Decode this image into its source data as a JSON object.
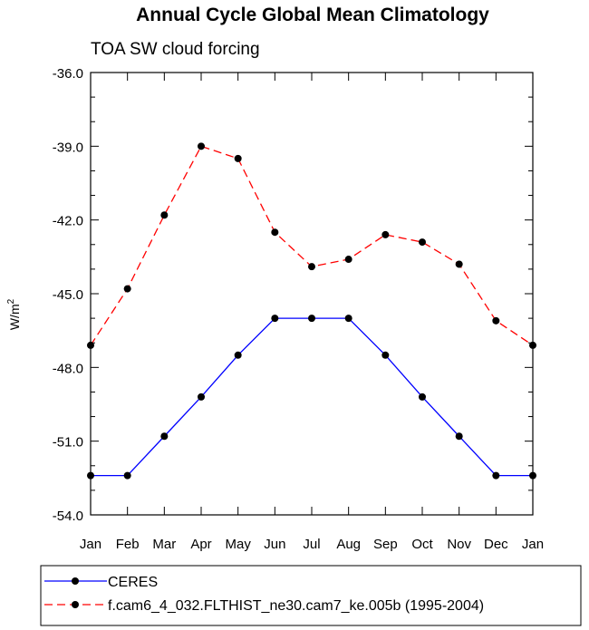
{
  "chart_data": {
    "type": "line",
    "title": "Annual Cycle Global Mean Climatology",
    "subtitle": "TOA SW cloud forcing",
    "xlabel": "",
    "ylabel": "W/m",
    "ylabel_superscript": "2",
    "categories": [
      "Jan",
      "Feb",
      "Mar",
      "Apr",
      "May",
      "Jun",
      "Jul",
      "Aug",
      "Sep",
      "Oct",
      "Nov",
      "Dec",
      "Jan"
    ],
    "ylim": [
      -54.0,
      -36.0
    ],
    "yticks": [
      "-36.0",
      "-39.0",
      "-42.0",
      "-45.0",
      "-48.0",
      "-51.0",
      "-54.0"
    ],
    "ytick_values": [
      -36,
      -39,
      -42,
      -45,
      -48,
      -51,
      -54
    ],
    "grid": false,
    "legend_position": "bottom",
    "series": [
      {
        "name": "CERES",
        "color": "#0000ff",
        "dash": "solid",
        "values": [
          -52.4,
          -52.4,
          -50.8,
          -49.2,
          -47.5,
          -46.0,
          -46.0,
          -46.0,
          -47.5,
          -49.2,
          -50.8,
          -52.4,
          -52.4
        ]
      },
      {
        "name": "f.cam6_4_032.FLTHIST_ne30.cam7_ke.005b (1995-2004)",
        "color": "#ff0000",
        "dash": "dashed",
        "values": [
          -47.1,
          -44.8,
          -41.8,
          -39.0,
          -39.5,
          -42.5,
          -43.9,
          -43.6,
          -42.6,
          -42.9,
          -43.8,
          -46.1,
          -47.1
        ]
      }
    ]
  }
}
